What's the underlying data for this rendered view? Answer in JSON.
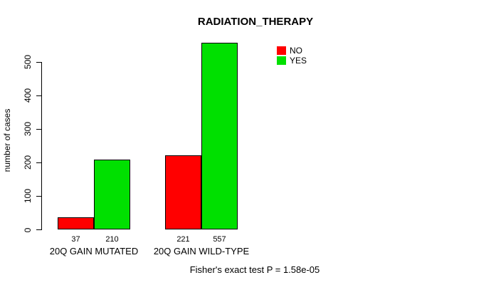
{
  "title": "RADIATION_THERAPY",
  "chart_data": {
    "type": "bar",
    "title": "RADIATION_THERAPY",
    "xlabel": "",
    "ylabel": "number of cases",
    "categories": [
      "20Q GAIN MUTATED",
      "20Q GAIN WILD-TYPE"
    ],
    "series": [
      {
        "name": "NO",
        "color": "#FF0000",
        "values": [
          37,
          221
        ]
      },
      {
        "name": "YES",
        "color": "#00E000",
        "values": [
          210,
          557
        ]
      }
    ],
    "bar_value_labels": [
      [
        "37",
        "210"
      ],
      [
        "221",
        "557"
      ]
    ],
    "yticks": [
      0,
      100,
      200,
      300,
      400,
      500
    ],
    "ylim": [
      0,
      560
    ],
    "grid": false,
    "legend_position": "top-right",
    "annotation": "Fisher's exact test P = 1.58e-05"
  },
  "colors": {
    "no": "#FF0000",
    "yes": "#00E000",
    "axis": "#000000",
    "background": "#FFFFFF"
  },
  "footer": {
    "fisher_text": "Fisher's exact test P = 1.58e-05"
  }
}
